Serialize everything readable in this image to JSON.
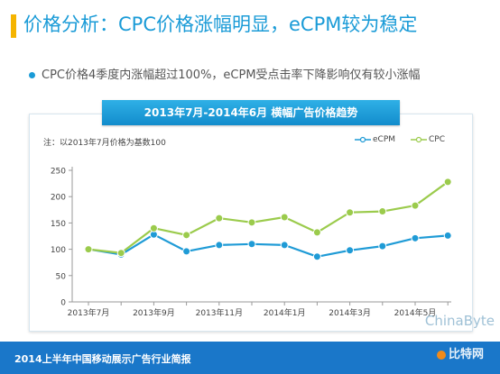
{
  "header": {
    "title": "价格分析：CPC价格涨幅明显，eCPM较为稳定",
    "bullet": "CPC价格4季度内涨幅超过100%，eCPM受点击率下降影响仅有较小涨幅"
  },
  "panel": {
    "header_title": "2013年7月-2014年6月 横幅广告价格趋势",
    "note": "注：以2013年7月价格为基数100"
  },
  "footer": {
    "text": "2014上半年中国移动展示广告行业简报"
  },
  "brand": {
    "name": "ChinaByte",
    "sub": "比特网"
  },
  "colors": {
    "accent": "#1a9bd7",
    "title_bar": "#f5b400",
    "ecpm": "#1f9bd6",
    "cpc": "#9bcb4c",
    "footer": "#1a77c9"
  },
  "chart_data": {
    "type": "line",
    "x": [
      "2013年7月",
      "2013年8月",
      "2013年9月",
      "2013年10月",
      "2013年11月",
      "2013年12月",
      "2014年1月",
      "2014年2月",
      "2014年3月",
      "2014年4月",
      "2014年5月",
      "2014年6月"
    ],
    "x_tick_labels": [
      "2013年7月",
      "2013年9月",
      "2013年11月",
      "2014年1月",
      "2014年3月",
      "2014年5月"
    ],
    "series": [
      {
        "name": "eCPM",
        "values": [
          100,
          90,
          128,
          96,
          108,
          110,
          108,
          86,
          98,
          106,
          121,
          126
        ]
      },
      {
        "name": "CPC",
        "values": [
          100,
          93,
          140,
          127,
          159,
          151,
          161,
          132,
          170,
          172,
          183,
          228
        ]
      }
    ],
    "ylim": [
      0,
      250
    ],
    "yticks": [
      0,
      50,
      100,
      150,
      200,
      250
    ],
    "legend": "top-right",
    "grid": false
  }
}
